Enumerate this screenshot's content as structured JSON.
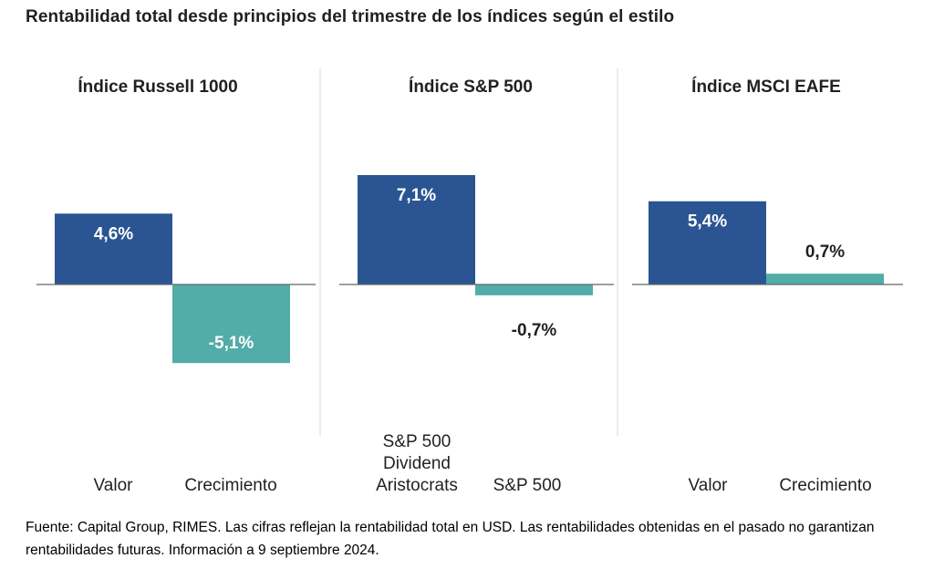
{
  "title": "Rentabilidad total desde principios del trimestre de los índices según el estilo",
  "source": "Fuente: Capital Group, RIMES. Las cifras reflejan la rentabilidad total en USD. Las rentabilidades obtenidas en el pasado no garantizan rentabilidades futuras. Información a 9 septiembre 2024.",
  "colors": {
    "first_series": "#2a5592",
    "second_series": "#52aca8",
    "axis": "#666666",
    "divider": "#d9d9d9"
  },
  "chart_data": [
    {
      "type": "bar",
      "title": "Índice Russell 1000",
      "categories": [
        [
          "Valor"
        ],
        [
          "Crecimiento"
        ]
      ],
      "values": [
        4.6,
        -5.1
      ],
      "labels": [
        "4,6%",
        "-5,1%"
      ],
      "unit": "%",
      "ylim": [
        -6,
        7.5
      ],
      "grid": false,
      "legend": false
    },
    {
      "type": "bar",
      "title": "Índice S&P 500",
      "categories": [
        [
          "S&P 500",
          "Dividend",
          "Aristocrats"
        ],
        [
          "S&P 500"
        ]
      ],
      "values": [
        7.1,
        -0.7
      ],
      "labels": [
        "7,1%",
        "-0,7%"
      ],
      "unit": "%",
      "ylim": [
        -6,
        7.5
      ],
      "grid": false,
      "legend": false
    },
    {
      "type": "bar",
      "title": "Índice MSCI EAFE",
      "categories": [
        [
          "Valor"
        ],
        [
          "Crecimiento"
        ]
      ],
      "values": [
        5.4,
        0.7
      ],
      "labels": [
        "5,4%",
        "0,7%"
      ],
      "unit": "%",
      "ylim": [
        -6,
        7.5
      ],
      "grid": false,
      "legend": false
    }
  ]
}
